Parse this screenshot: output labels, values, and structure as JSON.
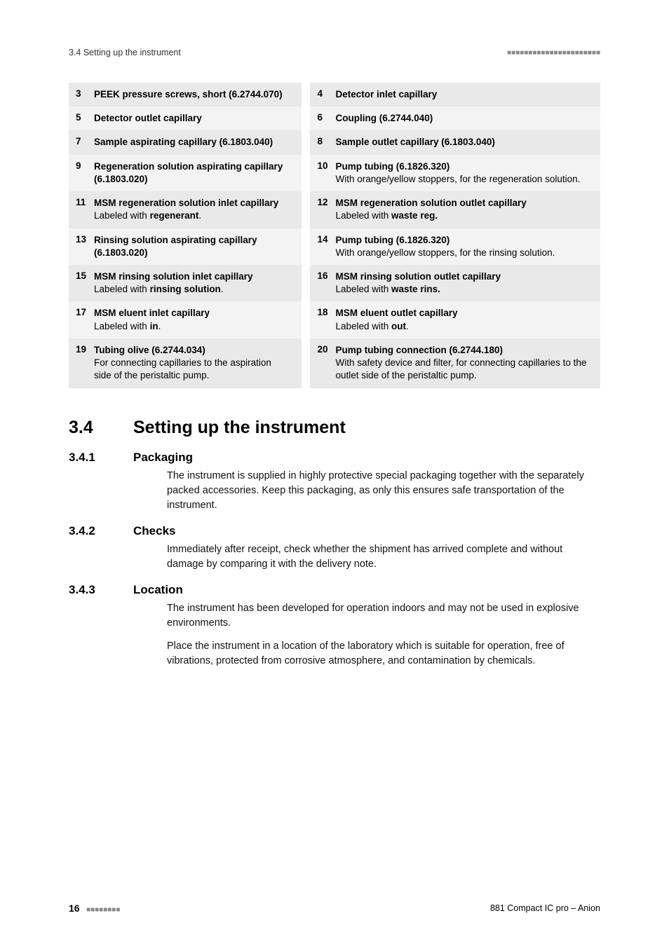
{
  "header": {
    "section_ref": "3.4 Setting up the instrument",
    "dashes": "■■■■■■■■■■■■■■■■■■■■■■"
  },
  "legend": [
    {
      "ln": "3",
      "lt": "PEEK pressure screws, short (6.2744.070)",
      "ld": "",
      "rn": "4",
      "rt": "Detector inlet capillary",
      "rd": "",
      "odd": true
    },
    {
      "ln": "5",
      "lt": "Detector outlet capillary",
      "ld": "",
      "rn": "6",
      "rt": "Coupling (6.2744.040)",
      "rd": "",
      "odd": false
    },
    {
      "ln": "7",
      "lt": "Sample aspirating capillary (6.1803.040)",
      "ld": "",
      "rn": "8",
      "rt": "Sample outlet capillary (6.1803.040)",
      "rd": "",
      "odd": true
    },
    {
      "ln": "9",
      "lt": "Regeneration solution aspirating capillary (6.1803.020)",
      "ld": "",
      "rn": "10",
      "rt": "Pump tubing (6.1826.320)",
      "rd": "With orange/yellow stoppers, for the regeneration solution.",
      "odd": false
    },
    {
      "ln": "11",
      "lt": "MSM regeneration solution inlet capillary",
      "ld": "Labeled with <b>regenerant</b>.",
      "rn": "12",
      "rt": "MSM regeneration solution outlet capillary",
      "rd": "Labeled with <b>waste reg.</b>",
      "odd": true
    },
    {
      "ln": "13",
      "lt": "Rinsing solution aspirating capillary (6.1803.020)",
      "ld": "",
      "rn": "14",
      "rt": "Pump tubing (6.1826.320)",
      "rd": "With orange/yellow stoppers, for the rinsing solution.",
      "odd": false
    },
    {
      "ln": "15",
      "lt": "MSM rinsing solution inlet capillary",
      "ld": "Labeled with <b>rinsing solution</b>.",
      "rn": "16",
      "rt": "MSM rinsing solution outlet capillary",
      "rd": "Labeled with <b>waste rins.</b>",
      "odd": true
    },
    {
      "ln": "17",
      "lt": "MSM eluent inlet capillary",
      "ld": "Labeled with <b>in</b>.",
      "rn": "18",
      "rt": "MSM eluent outlet capillary",
      "rd": "Labeled with <b>out</b>.",
      "odd": false
    },
    {
      "ln": "19",
      "lt": "Tubing olive (6.2744.034)",
      "ld": "For connecting capillaries to the aspiration side of the peristaltic pump.",
      "rn": "20",
      "rt": "Pump tubing connection (6.2744.180)",
      "rd": "With safety device and filter, for connecting capillaries to the outlet side of the peristaltic pump.",
      "odd": true
    }
  ],
  "section": {
    "num": "3.4",
    "title": "Setting up the instrument",
    "subs": [
      {
        "num": "3.4.1",
        "title": "Packaging",
        "paras": [
          "The instrument is supplied in highly protective special packaging together with the separately packed accessories. Keep this packaging, as only this ensures safe transportation of the instrument."
        ]
      },
      {
        "num": "3.4.2",
        "title": "Checks",
        "paras": [
          "Immediately after receipt, check whether the shipment has arrived complete and without damage by comparing it with the delivery note."
        ]
      },
      {
        "num": "3.4.3",
        "title": "Location",
        "paras": [
          "The instrument has been developed for operation indoors and may not be used in explosive environments.",
          "Place the instrument in a location of the laboratory which is suitable for operation, free of vibrations, protected from corrosive atmosphere, and contamination by chemicals."
        ]
      }
    ]
  },
  "footer": {
    "page": "16",
    "dashes": "■■■■■■■■",
    "doc": "881 Compact IC pro – Anion"
  }
}
